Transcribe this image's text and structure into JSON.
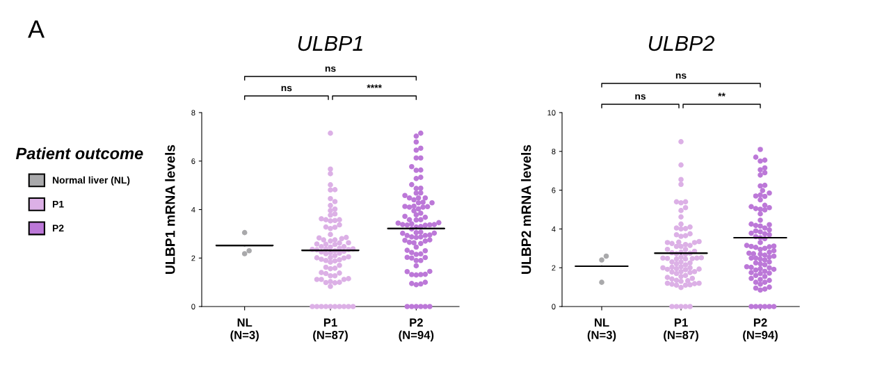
{
  "chart_data": [
    {
      "type": "scatter",
      "title": "ULBP1",
      "ylabel": "ULBP1 mRNA levels",
      "legend_title": "Patient outcome",
      "legend": "left",
      "marker": "circle",
      "grid": false,
      "categories": [
        "NL\n(N=3)",
        "P1\n(N=87)",
        "P2\n(N=94)"
      ],
      "ylim": [
        0,
        8
      ],
      "yticks": [
        0,
        2,
        4,
        6,
        8
      ],
      "annotations": [
        "A",
        "ns",
        "ns",
        "****"
      ],
      "series": [
        {
          "name": "Normal liver (NL)",
          "color": "#a9a9ab",
          "x": [
            "NL\n(N=3)",
            "NL\n(N=3)",
            "NL\n(N=3)"
          ],
          "values": [
            3.05,
            2.3,
            2.18
          ]
        },
        {
          "name": "P1",
          "color": "#dcb0e6",
          "x": [
            "P1\n(N=87)",
            "P1\n(N=87)",
            "P1\n(N=87)",
            "P1\n(N=87)",
            "P1\n(N=87)",
            "P1\n(N=87)",
            "P1\n(N=87)",
            "P1\n(N=87)",
            "P1\n(N=87)",
            "P1\n(N=87)",
            "P1\n(N=87)",
            "P1\n(N=87)",
            "P1\n(N=87)",
            "P1\n(N=87)",
            "P1\n(N=87)",
            "P1\n(N=87)",
            "P1\n(N=87)",
            "P1\n(N=87)",
            "P1\n(N=87)",
            "P1\n(N=87)",
            "P1\n(N=87)",
            "P1\n(N=87)",
            "P1\n(N=87)",
            "P1\n(N=87)",
            "P1\n(N=87)",
            "P1\n(N=87)",
            "P1\n(N=87)",
            "P1\n(N=87)",
            "P1\n(N=87)",
            "P1\n(N=87)",
            "P1\n(N=87)",
            "P1\n(N=87)",
            "P1\n(N=87)",
            "P1\n(N=87)",
            "P1\n(N=87)",
            "P1\n(N=87)",
            "P1\n(N=87)",
            "P1\n(N=87)",
            "P1\n(N=87)",
            "P1\n(N=87)",
            "P1\n(N=87)",
            "P1\n(N=87)",
            "P1\n(N=87)",
            "P1\n(N=87)",
            "P1\n(N=87)",
            "P1\n(N=87)",
            "P1\n(N=87)",
            "P1\n(N=87)",
            "P1\n(N=87)",
            "P1\n(N=87)",
            "P1\n(N=87)",
            "P1\n(N=87)",
            "P1\n(N=87)",
            "P1\n(N=87)",
            "P1\n(N=87)",
            "P1\n(N=87)",
            "P1\n(N=87)",
            "P1\n(N=87)",
            "P1\n(N=87)",
            "P1\n(N=87)",
            "P1\n(N=87)",
            "P1\n(N=87)",
            "P1\n(N=87)",
            "P1\n(N=87)",
            "P1\n(N=87)",
            "P1\n(N=87)",
            "P1\n(N=87)",
            "P1\n(N=87)",
            "P1\n(N=87)",
            "P1\n(N=87)",
            "P1\n(N=87)",
            "P1\n(N=87)",
            "P1\n(N=87)",
            "P1\n(N=87)",
            "P1\n(N=87)",
            "P1\n(N=87)",
            "P1\n(N=87)",
            "P1\n(N=87)",
            "P1\n(N=87)",
            "P1\n(N=87)",
            "P1\n(N=87)",
            "P1\n(N=87)",
            "P1\n(N=87)",
            "P1\n(N=87)",
            "P1\n(N=87)",
            "P1\n(N=87)",
            "P1\n(N=87)"
          ],
          "values": [
            7.15,
            5.67,
            5.48,
            5.02,
            4.82,
            4.81,
            4.45,
            4.33,
            4.17,
            4.02,
            3.96,
            3.82,
            3.77,
            3.62,
            3.58,
            3.58,
            3.55,
            3.53,
            3.37,
            3.28,
            3.27,
            3.22,
            2.97,
            2.85,
            2.83,
            2.8,
            2.75,
            2.75,
            2.7,
            2.63,
            2.62,
            2.58,
            2.57,
            2.56,
            2.47,
            2.47,
            2.45,
            2.4,
            2.38,
            2.37,
            2.36,
            2.35,
            2.34,
            2.3,
            2.28,
            2.25,
            2.22,
            2.2,
            2.18,
            2.1,
            2.05,
            2.02,
            2.01,
            2.0,
            1.95,
            1.93,
            1.9,
            1.88,
            1.83,
            1.7,
            1.62,
            1.58,
            1.56,
            1.4,
            1.38,
            1.36,
            1.27,
            1.27,
            1.15,
            1.12,
            1.12,
            1.12,
            1.03,
            1.0,
            0.99,
            0.98,
            0.83,
            0,
            0,
            0,
            0,
            0,
            0,
            0,
            0,
            0,
            0
          ]
        },
        {
          "name": "P2",
          "color": "#bc78d8",
          "x": [
            "P2\n(N=94)",
            "P2\n(N=94)",
            "P2\n(N=94)",
            "P2\n(N=94)",
            "P2\n(N=94)",
            "P2\n(N=94)",
            "P2\n(N=94)",
            "P2\n(N=94)",
            "P2\n(N=94)",
            "P2\n(N=94)",
            "P2\n(N=94)",
            "P2\n(N=94)",
            "P2\n(N=94)",
            "P2\n(N=94)",
            "P2\n(N=94)",
            "P2\n(N=94)",
            "P2\n(N=94)",
            "P2\n(N=94)",
            "P2\n(N=94)",
            "P2\n(N=94)",
            "P2\n(N=94)",
            "P2\n(N=94)",
            "P2\n(N=94)",
            "P2\n(N=94)",
            "P2\n(N=94)",
            "P2\n(N=94)",
            "P2\n(N=94)",
            "P2\n(N=94)",
            "P2\n(N=94)",
            "P2\n(N=94)",
            "P2\n(N=94)",
            "P2\n(N=94)",
            "P2\n(N=94)",
            "P2\n(N=94)",
            "P2\n(N=94)",
            "P2\n(N=94)",
            "P2\n(N=94)",
            "P2\n(N=94)",
            "P2\n(N=94)",
            "P2\n(N=94)",
            "P2\n(N=94)",
            "P2\n(N=94)",
            "P2\n(N=94)",
            "P2\n(N=94)",
            "P2\n(N=94)",
            "P2\n(N=94)",
            "P2\n(N=94)",
            "P2\n(N=94)",
            "P2\n(N=94)",
            "P2\n(N=94)",
            "P2\n(N=94)",
            "P2\n(N=94)",
            "P2\n(N=94)",
            "P2\n(N=94)",
            "P2\n(N=94)",
            "P2\n(N=94)",
            "P2\n(N=94)",
            "P2\n(N=94)",
            "P2\n(N=94)",
            "P2\n(N=94)",
            "P2\n(N=94)",
            "P2\n(N=94)",
            "P2\n(N=94)",
            "P2\n(N=94)",
            "P2\n(N=94)",
            "P2\n(N=94)",
            "P2\n(N=94)",
            "P2\n(N=94)",
            "P2\n(N=94)",
            "P2\n(N=94)",
            "P2\n(N=94)",
            "P2\n(N=94)",
            "P2\n(N=94)",
            "P2\n(N=94)",
            "P2\n(N=94)",
            "P2\n(N=94)",
            "P2\n(N=94)",
            "P2\n(N=94)",
            "P2\n(N=94)",
            "P2\n(N=94)",
            "P2\n(N=94)",
            "P2\n(N=94)",
            "P2\n(N=94)",
            "P2\n(N=94)",
            "P2\n(N=94)",
            "P2\n(N=94)",
            "P2\n(N=94)",
            "P2\n(N=94)",
            "P2\n(N=94)",
            "P2\n(N=94)",
            "P2\n(N=94)",
            "P2\n(N=94)",
            "P2\n(N=94)",
            "P2\n(N=94)"
          ],
          "values": [
            7.15,
            7.03,
            6.79,
            6.53,
            6.45,
            6.13,
            6.13,
            5.77,
            5.63,
            5.62,
            5.33,
            5.28,
            5.03,
            4.88,
            4.87,
            4.69,
            4.68,
            4.58,
            4.48,
            4.48,
            4.48,
            4.4,
            4.3,
            4.28,
            4.28,
            4.14,
            4.13,
            4.12,
            4.1,
            4.1,
            4.03,
            3.95,
            3.85,
            3.78,
            3.72,
            3.68,
            3.58,
            3.58,
            3.57,
            3.46,
            3.44,
            3.41,
            3.38,
            3.38,
            3.37,
            3.36,
            3.35,
            3.3,
            3.28,
            3.2,
            3.07,
            3.05,
            3.03,
            3.02,
            2.95,
            2.93,
            2.93,
            2.87,
            2.87,
            2.85,
            2.75,
            2.73,
            2.7,
            2.65,
            2.63,
            2.6,
            2.45,
            2.32,
            2.3,
            2.23,
            2.17,
            2.15,
            2.03,
            2.02,
            2.0,
            1.9,
            1.9,
            1.68,
            1.45,
            1.44,
            1.33,
            1.32,
            1.32,
            1.3,
            1.0,
            0.95,
            0.93,
            0.9,
            0,
            0,
            0,
            0,
            0,
            0
          ]
        },
        {
          "type": "box",
          "color": "#000000",
          "boxes": [
            {
              "low": 2.52,
              "q1": 2.52,
              "median": 2.52,
              "q3": 2.52,
              "high": 2.52
            },
            {
              "low": 2.32,
              "q1": 2.32,
              "median": 2.32,
              "q3": 2.32,
              "high": 2.32
            },
            {
              "low": 3.22,
              "q1": 3.22,
              "median": 3.22,
              "q3": 3.22,
              "high": 3.22
            }
          ]
        }
      ]
    },
    {
      "type": "scatter",
      "title": "ULBP2",
      "ylabel": "ULBP2 mRNA levels",
      "marker": "circle",
      "grid": false,
      "categories": [
        "NL\n(N=3)",
        "P1\n(N=87)",
        "P2\n(N=94)"
      ],
      "ylim": [
        0,
        10
      ],
      "yticks": [
        0,
        2,
        4,
        6,
        8,
        10
      ],
      "annotations": [
        "ns",
        "ns",
        "**"
      ],
      "series": [
        {
          "color": "#a9a9ab",
          "x": [
            "NL\n(N=3)",
            "NL\n(N=3)",
            "NL\n(N=3)"
          ],
          "values": [
            2.6,
            2.4,
            1.25
          ]
        },
        {
          "color": "#dcb0e6",
          "x": [
            "P1\n(N=87)",
            "P1\n(N=87)",
            "P1\n(N=87)",
            "P1\n(N=87)",
            "P1\n(N=87)",
            "P1\n(N=87)",
            "P1\n(N=87)",
            "P1\n(N=87)",
            "P1\n(N=87)",
            "P1\n(N=87)",
            "P1\n(N=87)",
            "P1\n(N=87)",
            "P1\n(N=87)",
            "P1\n(N=87)",
            "P1\n(N=87)",
            "P1\n(N=87)",
            "P1\n(N=87)",
            "P1\n(N=87)",
            "P1\n(N=87)",
            "P1\n(N=87)",
            "P1\n(N=87)",
            "P1\n(N=87)",
            "P1\n(N=87)",
            "P1\n(N=87)",
            "P1\n(N=87)",
            "P1\n(N=87)",
            "P1\n(N=87)",
            "P1\n(N=87)",
            "P1\n(N=87)",
            "P1\n(N=87)",
            "P1\n(N=87)",
            "P1\n(N=87)",
            "P1\n(N=87)",
            "P1\n(N=87)",
            "P1\n(N=87)",
            "P1\n(N=87)",
            "P1\n(N=87)",
            "P1\n(N=87)",
            "P1\n(N=87)",
            "P1\n(N=87)",
            "P1\n(N=87)",
            "P1\n(N=87)",
            "P1\n(N=87)",
            "P1\n(N=87)",
            "P1\n(N=87)",
            "P1\n(N=87)",
            "P1\n(N=87)",
            "P1\n(N=87)",
            "P1\n(N=87)",
            "P1\n(N=87)",
            "P1\n(N=87)",
            "P1\n(N=87)",
            "P1\n(N=87)",
            "P1\n(N=87)",
            "P1\n(N=87)",
            "P1\n(N=87)",
            "P1\n(N=87)",
            "P1\n(N=87)",
            "P1\n(N=87)",
            "P1\n(N=87)",
            "P1\n(N=87)",
            "P1\n(N=87)",
            "P1\n(N=87)",
            "P1\n(N=87)",
            "P1\n(N=87)",
            "P1\n(N=87)",
            "P1\n(N=87)",
            "P1\n(N=87)",
            "P1\n(N=87)",
            "P1\n(N=87)",
            "P1\n(N=87)",
            "P1\n(N=87)",
            "P1\n(N=87)",
            "P1\n(N=87)",
            "P1\n(N=87)",
            "P1\n(N=87)",
            "P1\n(N=87)",
            "P1\n(N=87)",
            "P1\n(N=87)",
            "P1\n(N=87)",
            "P1\n(N=87)",
            "P1\n(N=87)",
            "P1\n(N=87)"
          ],
          "values": [
            8.5,
            7.3,
            6.55,
            6.3,
            5.4,
            5.4,
            5.35,
            5.1,
            4.95,
            4.62,
            4.25,
            4.1,
            4.05,
            4.02,
            4.0,
            3.75,
            3.7,
            3.65,
            3.62,
            3.35,
            3.32,
            3.3,
            3.3,
            3.25,
            3.2,
            3.15,
            3.1,
            3.1,
            2.95,
            2.95,
            2.85,
            2.8,
            2.78,
            2.75,
            2.72,
            2.7,
            2.55,
            2.52,
            2.5,
            2.5,
            2.48,
            2.47,
            2.45,
            2.45,
            2.3,
            2.3,
            2.25,
            2.2,
            2.15,
            2.05,
            2.03,
            2.0,
            2.0,
            1.95,
            1.93,
            1.92,
            1.9,
            1.8,
            1.8,
            1.78,
            1.75,
            1.7,
            1.6,
            1.55,
            1.5,
            1.45,
            1.42,
            1.35,
            1.33,
            1.3,
            1.2,
            1.2,
            1.18,
            1.15,
            1.12,
            1.1,
            1.1,
            0.98,
            0,
            0,
            0,
            0,
            0
          ]
        },
        {
          "color": "#bc78d8",
          "x": [
            "P2\n(N=94)",
            "P2\n(N=94)",
            "P2\n(N=94)",
            "P2\n(N=94)",
            "P2\n(N=94)",
            "P2\n(N=94)",
            "P2\n(N=94)",
            "P2\n(N=94)",
            "P2\n(N=94)",
            "P2\n(N=94)",
            "P2\n(N=94)",
            "P2\n(N=94)",
            "P2\n(N=94)",
            "P2\n(N=94)",
            "P2\n(N=94)",
            "P2\n(N=94)",
            "P2\n(N=94)",
            "P2\n(N=94)",
            "P2\n(N=94)",
            "P2\n(N=94)",
            "P2\n(N=94)",
            "P2\n(N=94)",
            "P2\n(N=94)",
            "P2\n(N=94)",
            "P2\n(N=94)",
            "P2\n(N=94)",
            "P2\n(N=94)",
            "P2\n(N=94)",
            "P2\n(N=94)",
            "P2\n(N=94)",
            "P2\n(N=94)",
            "P2\n(N=94)",
            "P2\n(N=94)",
            "P2\n(N=94)",
            "P2\n(N=94)",
            "P2\n(N=94)",
            "P2\n(N=94)",
            "P2\n(N=94)",
            "P2\n(N=94)",
            "P2\n(N=94)",
            "P2\n(N=94)",
            "P2\n(N=94)",
            "P2\n(N=94)",
            "P2\n(N=94)",
            "P2\n(N=94)",
            "P2\n(N=94)",
            "P2\n(N=94)",
            "P2\n(N=94)",
            "P2\n(N=94)",
            "P2\n(N=94)",
            "P2\n(N=94)",
            "P2\n(N=94)",
            "P2\n(N=94)",
            "P2\n(N=94)",
            "P2\n(N=94)",
            "P2\n(N=94)",
            "P2\n(N=94)",
            "P2\n(N=94)",
            "P2\n(N=94)",
            "P2\n(N=94)",
            "P2\n(N=94)",
            "P2\n(N=94)",
            "P2\n(N=94)",
            "P2\n(N=94)",
            "P2\n(N=94)",
            "P2\n(N=94)",
            "P2\n(N=94)",
            "P2\n(N=94)",
            "P2\n(N=94)",
            "P2\n(N=94)",
            "P2\n(N=94)",
            "P2\n(N=94)",
            "P2\n(N=94)",
            "P2\n(N=94)",
            "P2\n(N=94)",
            "P2\n(N=94)",
            "P2\n(N=94)",
            "P2\n(N=94)",
            "P2\n(N=94)",
            "P2\n(N=94)",
            "P2\n(N=94)",
            "P2\n(N=94)",
            "P2\n(N=94)",
            "P2\n(N=94)",
            "P2\n(N=94)",
            "P2\n(N=94)",
            "P2\n(N=94)",
            "P2\n(N=94)",
            "P2\n(N=94)",
            "P2\n(N=94)"
          ],
          "values": [
            8.1,
            7.7,
            7.55,
            7.5,
            7.15,
            7.05,
            6.9,
            6.78,
            6.25,
            6.22,
            5.98,
            5.85,
            5.75,
            5.7,
            5.68,
            5.5,
            5.22,
            5.15,
            5.1,
            5.05,
            5.02,
            4.98,
            4.78,
            4.45,
            4.25,
            4.22,
            4.18,
            4.15,
            4.05,
            3.95,
            3.9,
            3.85,
            3.78,
            3.75,
            3.7,
            3.6,
            3.55,
            3.5,
            3.3,
            3.15,
            3.12,
            3.1,
            3.08,
            3.05,
            3.0,
            2.95,
            2.88,
            2.8,
            2.75,
            2.72,
            2.7,
            2.65,
            2.6,
            2.55,
            2.5,
            2.5,
            2.45,
            2.4,
            2.3,
            2.25,
            2.2,
            2.15,
            2.05,
            2.02,
            2.0,
            1.95,
            1.92,
            1.88,
            1.82,
            1.75,
            1.72,
            1.7,
            1.6,
            1.55,
            1.45,
            1.4,
            1.35,
            1.25,
            1.25,
            1.15,
            1.0,
            0.95,
            0.9,
            0.85,
            0,
            0,
            0,
            0,
            0,
            0
          ]
        },
        {
          "type": "box",
          "color": "#000000",
          "boxes": [
            {
              "low": 2.08,
              "q1": 2.08,
              "median": 2.08,
              "q3": 2.08,
              "high": 2.08
            },
            {
              "low": 2.75,
              "q1": 2.75,
              "median": 2.75,
              "q3": 2.75,
              "high": 2.75
            },
            {
              "low": 3.55,
              "q1": 3.55,
              "median": 3.55,
              "q3": 3.55,
              "high": 3.55
            }
          ]
        }
      ]
    }
  ]
}
